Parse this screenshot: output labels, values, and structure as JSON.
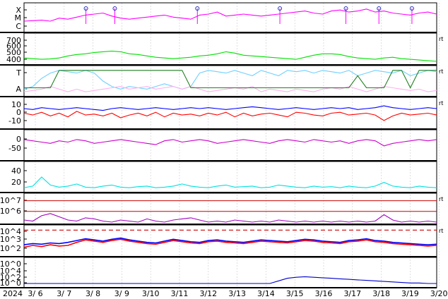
{
  "chart_data": {
    "type": "line",
    "x_start_label": "2024",
    "x_ticks": [
      "3/ 6",
      "3/ 7",
      "3/ 8",
      "3/ 9",
      "3/10",
      "3/11",
      "3/12",
      "3/13",
      "3/14",
      "3/15",
      "3/16",
      "3/17",
      "3/18",
      "3/19",
      "3/20"
    ],
    "grid": true,
    "panels": [
      {
        "name": "flare-class",
        "y_ticks": [
          "X",
          "M",
          "C"
        ],
        "series": [
          {
            "color": "#ff00ff",
            "values": [
              0.9,
              0.95,
              1.0,
              0.9,
              1.2,
              1.1,
              1.3,
              1.5,
              1.6,
              1.7,
              1.4,
              1.2,
              1.1,
              1.2,
              1.3,
              1.4,
              1.5,
              1.3,
              1.2,
              1.1,
              1.5,
              1.6,
              1.8,
              1.4,
              1.5,
              1.6,
              1.5,
              1.4,
              1.5,
              1.6,
              1.7,
              1.8,
              1.9,
              1.7,
              1.6,
              1.9,
              2.0,
              1.8,
              1.9,
              2.1,
              1.8,
              1.9,
              1.7,
              1.6,
              1.5,
              1.7,
              1.8,
              1.6
            ]
          }
        ],
        "events": [
          0.15,
          0.22,
          0.42,
          0.62,
          0.78,
          0.86,
          0.94
        ]
      },
      {
        "name": "solar-wind-speed",
        "y_ticks": [
          "700",
          "600",
          "500",
          "400"
        ],
        "ylim": [
          350,
          750
        ],
        "series": [
          {
            "color": "#00e000",
            "values": [
              420,
              410,
              400,
              405,
              420,
              450,
              470,
              480,
              500,
              510,
              520,
              510,
              480,
              470,
              450,
              430,
              420,
              410,
              420,
              430,
              450,
              460,
              480,
              510,
              490,
              460,
              450,
              440,
              430,
              420,
              410,
              400,
              430,
              460,
              480,
              480,
              470,
              440,
              420,
              410,
              400,
              420,
              430,
              410,
              400,
              390,
              380,
              370
            ]
          }
        ],
        "right_mark": "rt"
      },
      {
        "name": "imf-sector",
        "y_ticks": [
          "T",
          "A"
        ],
        "series": [
          {
            "color": "#6fd0ff",
            "values": [
              0.2,
              0.3,
              0.6,
              0.8,
              0.9,
              0.85,
              0.8,
              0.9,
              0.8,
              0.5,
              0.3,
              0.2,
              0.3,
              0.25,
              0.2,
              0.3,
              0.4,
              0.3,
              0.2,
              0.3,
              0.8,
              0.9,
              0.85,
              0.8,
              0.9,
              0.8,
              0.7,
              0.9,
              0.8,
              0.7,
              0.9,
              0.85,
              0.9,
              0.8,
              0.9,
              0.85,
              0.8,
              0.9,
              0.7,
              0.8,
              0.9,
              0.85,
              0.8,
              0.9,
              0.7,
              0.8,
              0.9,
              0.85
            ]
          },
          {
            "color": "#ffb0f0",
            "values": [
              0.1,
              0.15,
              0.2,
              0.3,
              0.2,
              0.1,
              0.2,
              0.1,
              0.15,
              0.2,
              0.25,
              0.3,
              0.2,
              0.25,
              0.3,
              0.2,
              0.25,
              0.3,
              0.2,
              0.3,
              0.2,
              0.1,
              0.15,
              0.2,
              0.25,
              0.2,
              0.3,
              0.1,
              0.2,
              0.15,
              0.1,
              0.2,
              0.15,
              0.1,
              0.2,
              0.25,
              0.2,
              0.3,
              0.2,
              0.1,
              0.2,
              0.3,
              0.25,
              0.2,
              0.15,
              0.2,
              0.1,
              0.15
            ]
          },
          {
            "color": "#208020",
            "values": [
              0.25,
              0.25,
              0.25,
              0.25,
              0.9,
              0.9,
              0.9,
              0.9,
              0.9,
              0.9,
              0.9,
              0.9,
              0.9,
              0.9,
              0.9,
              0.9,
              0.9,
              0.9,
              0.9,
              0.25,
              0.25,
              0.25,
              0.25,
              0.25,
              0.25,
              0.25,
              0.25,
              0.25,
              0.25,
              0.25,
              0.25,
              0.25,
              0.25,
              0.25,
              0.25,
              0.25,
              0.25,
              0.25,
              0.7,
              0.25,
              0.25,
              0.25,
              0.9,
              0.9,
              0.25,
              0.9,
              0.9,
              0.9
            ]
          }
        ],
        "right_mark": "rt"
      },
      {
        "name": "imf-bz",
        "y_ticks": [
          "10",
          "0",
          "-10"
        ],
        "ylim": [
          -15,
          15
        ],
        "series": [
          {
            "color": "#0000ff",
            "values": [
              5,
              4,
              6,
              5,
              4,
              5,
              6,
              5,
              4,
              3,
              5,
              6,
              5,
              4,
              5,
              6,
              5,
              4,
              5,
              6,
              5,
              6,
              5,
              4,
              5,
              6,
              7,
              6,
              5,
              4,
              5,
              6,
              5,
              4,
              5,
              6,
              5,
              6,
              4,
              5,
              6,
              8,
              6,
              5,
              4,
              5,
              6,
              5
            ]
          },
          {
            "color": "#ff0000",
            "values": [
              0,
              -2,
              1,
              -3,
              0,
              -4,
              2,
              -2,
              -1,
              -3,
              0,
              -5,
              -2,
              0,
              -3,
              1,
              -4,
              0,
              -2,
              -1,
              -3,
              0,
              -2,
              1,
              -4,
              0,
              -3,
              -1,
              0,
              -2,
              -4,
              1,
              0,
              -2,
              -3,
              0,
              1,
              -2,
              -1,
              0,
              -2,
              -8,
              -3,
              0,
              -2,
              -1,
              0,
              -2
            ]
          }
        ],
        "right_mark": "rt"
      },
      {
        "name": "dst-index",
        "y_ticks": [
          "0",
          "-50"
        ],
        "ylim": [
          -80,
          25
        ],
        "series": [
          {
            "color": "#cc00cc",
            "values": [
              -5,
              -10,
              -15,
              -20,
              -10,
              -15,
              -5,
              -10,
              -20,
              -15,
              -10,
              -5,
              -10,
              -15,
              -20,
              -25,
              -10,
              -5,
              -15,
              -10,
              -5,
              -10,
              -20,
              -15,
              -10,
              -5,
              -10,
              -15,
              -20,
              -10,
              -5,
              -10,
              -15,
              -5,
              -10,
              -15,
              -10,
              -20,
              -10,
              -5,
              -10,
              -30,
              -20,
              -15,
              -10,
              -5,
              -10,
              -5
            ]
          }
        ]
      },
      {
        "name": "kp-index",
        "y_ticks": [
          "40",
          "20"
        ],
        "ylim": [
          0,
          50
        ],
        "series": [
          {
            "color": "#00e0e0",
            "values": [
              5,
              8,
              25,
              10,
              6,
              8,
              12,
              6,
              5,
              8,
              10,
              6,
              5,
              7,
              8,
              5,
              6,
              8,
              12,
              8,
              6,
              5,
              8,
              10,
              6,
              7,
              8,
              5,
              6,
              10,
              8,
              6,
              5,
              8,
              6,
              7,
              5,
              8,
              6,
              5,
              8,
              15,
              8,
              6,
              5,
              8,
              6,
              5
            ]
          }
        ]
      },
      {
        "name": "electron-flux",
        "y_ticks": [
          "10^7",
          "10^6"
        ],
        "ylim": [
          5,
          7.5
        ],
        "thresholds": [
          7,
          6
        ],
        "series": [
          {
            "color": "#a000c0",
            "values": [
              5.2,
              5.1,
              5.6,
              5.8,
              5.5,
              5.2,
              5.1,
              5.4,
              5.3,
              5.1,
              5.0,
              5.2,
              5.1,
              5.0,
              5.3,
              5.1,
              5.0,
              5.2,
              5.3,
              5.4,
              5.2,
              5.0,
              5.1,
              5.0,
              5.2,
              5.1,
              5.0,
              5.1,
              5.0,
              5.2,
              5.1,
              5.0,
              5.1,
              5.0,
              5.1,
              5.0,
              5.1,
              5.0,
              5.1,
              5.0,
              5.1,
              5.7,
              5.2,
              5.0,
              5.1,
              5.0,
              5.1,
              5.0
            ]
          }
        ],
        "right_mark": "rt"
      },
      {
        "name": "proton-flux",
        "y_ticks": [
          "10^4",
          "10^3",
          "10^2",
          "10^0"
        ],
        "ylim": [
          0,
          4.5
        ],
        "threshold": 4,
        "series": [
          {
            "color": "#0000ff",
            "values": [
              1.6,
              1.8,
              1.7,
              1.9,
              1.8,
              2.0,
              2.3,
              2.6,
              2.4,
              2.2,
              2.5,
              2.7,
              2.4,
              2.2,
              2.0,
              1.9,
              2.2,
              2.5,
              2.3,
              2.1,
              2.0,
              2.3,
              2.4,
              2.2,
              2.1,
              2.0,
              2.2,
              2.4,
              2.3,
              2.2,
              2.1,
              2.3,
              2.5,
              2.4,
              2.2,
              2.1,
              2.0,
              2.3,
              2.4,
              2.6,
              2.3,
              2.2,
              2.0,
              1.9,
              1.8,
              1.7,
              1.6,
              1.7
            ]
          },
          {
            "color": "#ff0000",
            "values": [
              1.2,
              1.5,
              1.3,
              1.6,
              1.4,
              1.5,
              2.0,
              2.4,
              2.2,
              2.0,
              2.3,
              2.5,
              2.2,
              2.0,
              1.8,
              1.7,
              2.0,
              2.3,
              2.1,
              1.9,
              1.8,
              2.1,
              2.2,
              2.0,
              1.9,
              1.8,
              2.0,
              2.2,
              2.1,
              2.0,
              1.9,
              2.1,
              2.3,
              2.2,
              2.0,
              1.9,
              1.8,
              2.1,
              2.2,
              2.4,
              2.1,
              2.0,
              1.8,
              1.7,
              1.6,
              1.5,
              1.4,
              1.5
            ]
          }
        ],
        "right_mark": "rt"
      },
      {
        "name": "neutron-counts",
        "y_ticks": [
          "10^4",
          "10^2",
          "10^0"
        ],
        "ylim": [
          -0.4,
          4.6
        ],
        "series": [
          {
            "color": "#0000cc",
            "values": [
              0,
              0,
              0,
              0,
              0,
              0,
              0,
              0,
              0,
              0,
              0,
              0,
              0,
              0,
              0,
              0,
              0,
              0,
              0,
              0,
              0,
              0,
              0,
              0,
              0,
              0,
              0,
              0,
              0,
              0.5,
              1.0,
              1.2,
              1.3,
              1.2,
              1.1,
              1.0,
              0.9,
              0.8,
              0.7,
              0.6,
              0.5,
              0.4,
              0.3,
              0.2,
              0.1,
              0.1,
              0,
              0
            ]
          }
        ]
      }
    ]
  }
}
